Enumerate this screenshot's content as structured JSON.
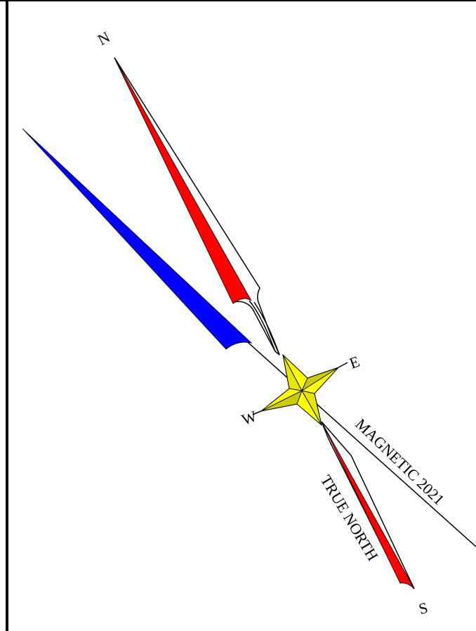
{
  "labels": {
    "north": "N",
    "east": "E",
    "west": "W",
    "south": "S",
    "magnetic": "MAGNETIC 2021",
    "true_north": "TRUE NORTH"
  }
}
